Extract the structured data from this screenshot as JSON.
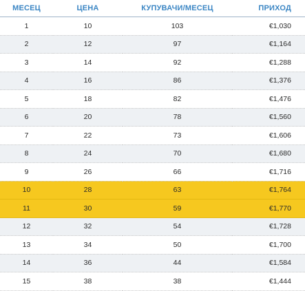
{
  "table": {
    "headers": [
      "МЕСЕЦ",
      "ЦЕНА",
      "КУПУВАЧИ/МЕСЕЦ",
      "ПРИХОД"
    ],
    "rows": [
      {
        "month": "1",
        "price": "10",
        "buyers": "103",
        "revenue": "€1,030",
        "highlight": false
      },
      {
        "month": "2",
        "price": "12",
        "buyers": "97",
        "revenue": "€1,164",
        "highlight": false
      },
      {
        "month": "3",
        "price": "14",
        "buyers": "92",
        "revenue": "€1,288",
        "highlight": false
      },
      {
        "month": "4",
        "price": "16",
        "buyers": "86",
        "revenue": "€1,376",
        "highlight": false
      },
      {
        "month": "5",
        "price": "18",
        "buyers": "82",
        "revenue": "€1,476",
        "highlight": false
      },
      {
        "month": "6",
        "price": "20",
        "buyers": "78",
        "revenue": "€1,560",
        "highlight": false
      },
      {
        "month": "7",
        "price": "22",
        "buyers": "73",
        "revenue": "€1,606",
        "highlight": false
      },
      {
        "month": "8",
        "price": "24",
        "buyers": "70",
        "revenue": "€1,680",
        "highlight": false
      },
      {
        "month": "9",
        "price": "26",
        "buyers": "66",
        "revenue": "€1,716",
        "highlight": false
      },
      {
        "month": "10",
        "price": "28",
        "buyers": "63",
        "revenue": "€1,764",
        "highlight": true
      },
      {
        "month": "11",
        "price": "30",
        "buyers": "59",
        "revenue": "€1,770",
        "highlight": true
      },
      {
        "month": "12",
        "price": "32",
        "buyers": "54",
        "revenue": "€1,728",
        "highlight": false
      },
      {
        "month": "13",
        "price": "34",
        "buyers": "50",
        "revenue": "€1,700",
        "highlight": false
      },
      {
        "month": "14",
        "price": "36",
        "buyers": "44",
        "revenue": "€1,584",
        "highlight": false
      },
      {
        "month": "15",
        "price": "38",
        "buyers": "38",
        "revenue": "€1,444",
        "highlight": false
      }
    ]
  }
}
